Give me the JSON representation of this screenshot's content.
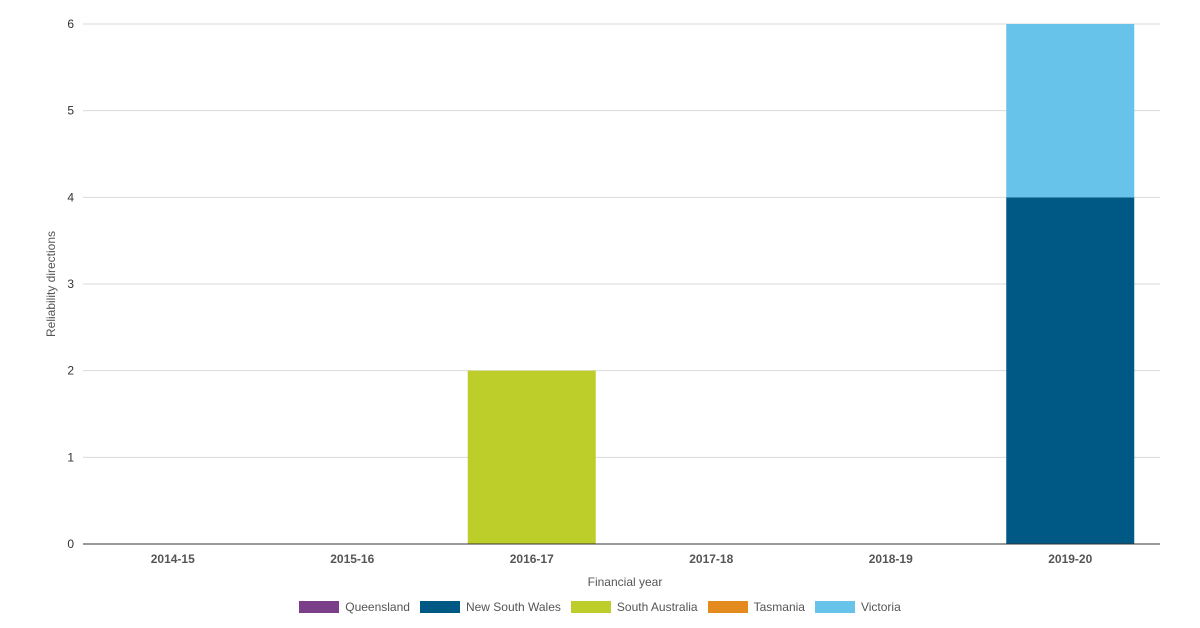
{
  "chart_data": {
    "type": "bar",
    "stacked": true,
    "categories": [
      "2014-15",
      "2015-16",
      "2016-17",
      "2017-18",
      "2018-19",
      "2019-20"
    ],
    "series": [
      {
        "name": "Queensland",
        "color": "#7b3f8a",
        "values": [
          0,
          0,
          0,
          0,
          0,
          0
        ]
      },
      {
        "name": "New South Wales",
        "color": "#005884",
        "values": [
          0,
          0,
          0,
          0,
          0,
          4
        ]
      },
      {
        "name": "South Australia",
        "color": "#bdcd2a",
        "values": [
          0,
          0,
          2,
          0,
          0,
          0
        ]
      },
      {
        "name": "Tasmania",
        "color": "#e48b1f",
        "values": [
          0,
          0,
          0,
          0,
          0,
          0
        ]
      },
      {
        "name": "Victoria",
        "color": "#67c3ea",
        "values": [
          0,
          0,
          0,
          0,
          0,
          2
        ]
      }
    ],
    "xlabel": "Financial year",
    "ylabel": "Reliability directions",
    "ylim": [
      0,
      6
    ],
    "yticks": [
      "0",
      "1",
      "2",
      "3",
      "4",
      "5",
      "6"
    ],
    "grid": true,
    "legend_position": "bottom"
  }
}
